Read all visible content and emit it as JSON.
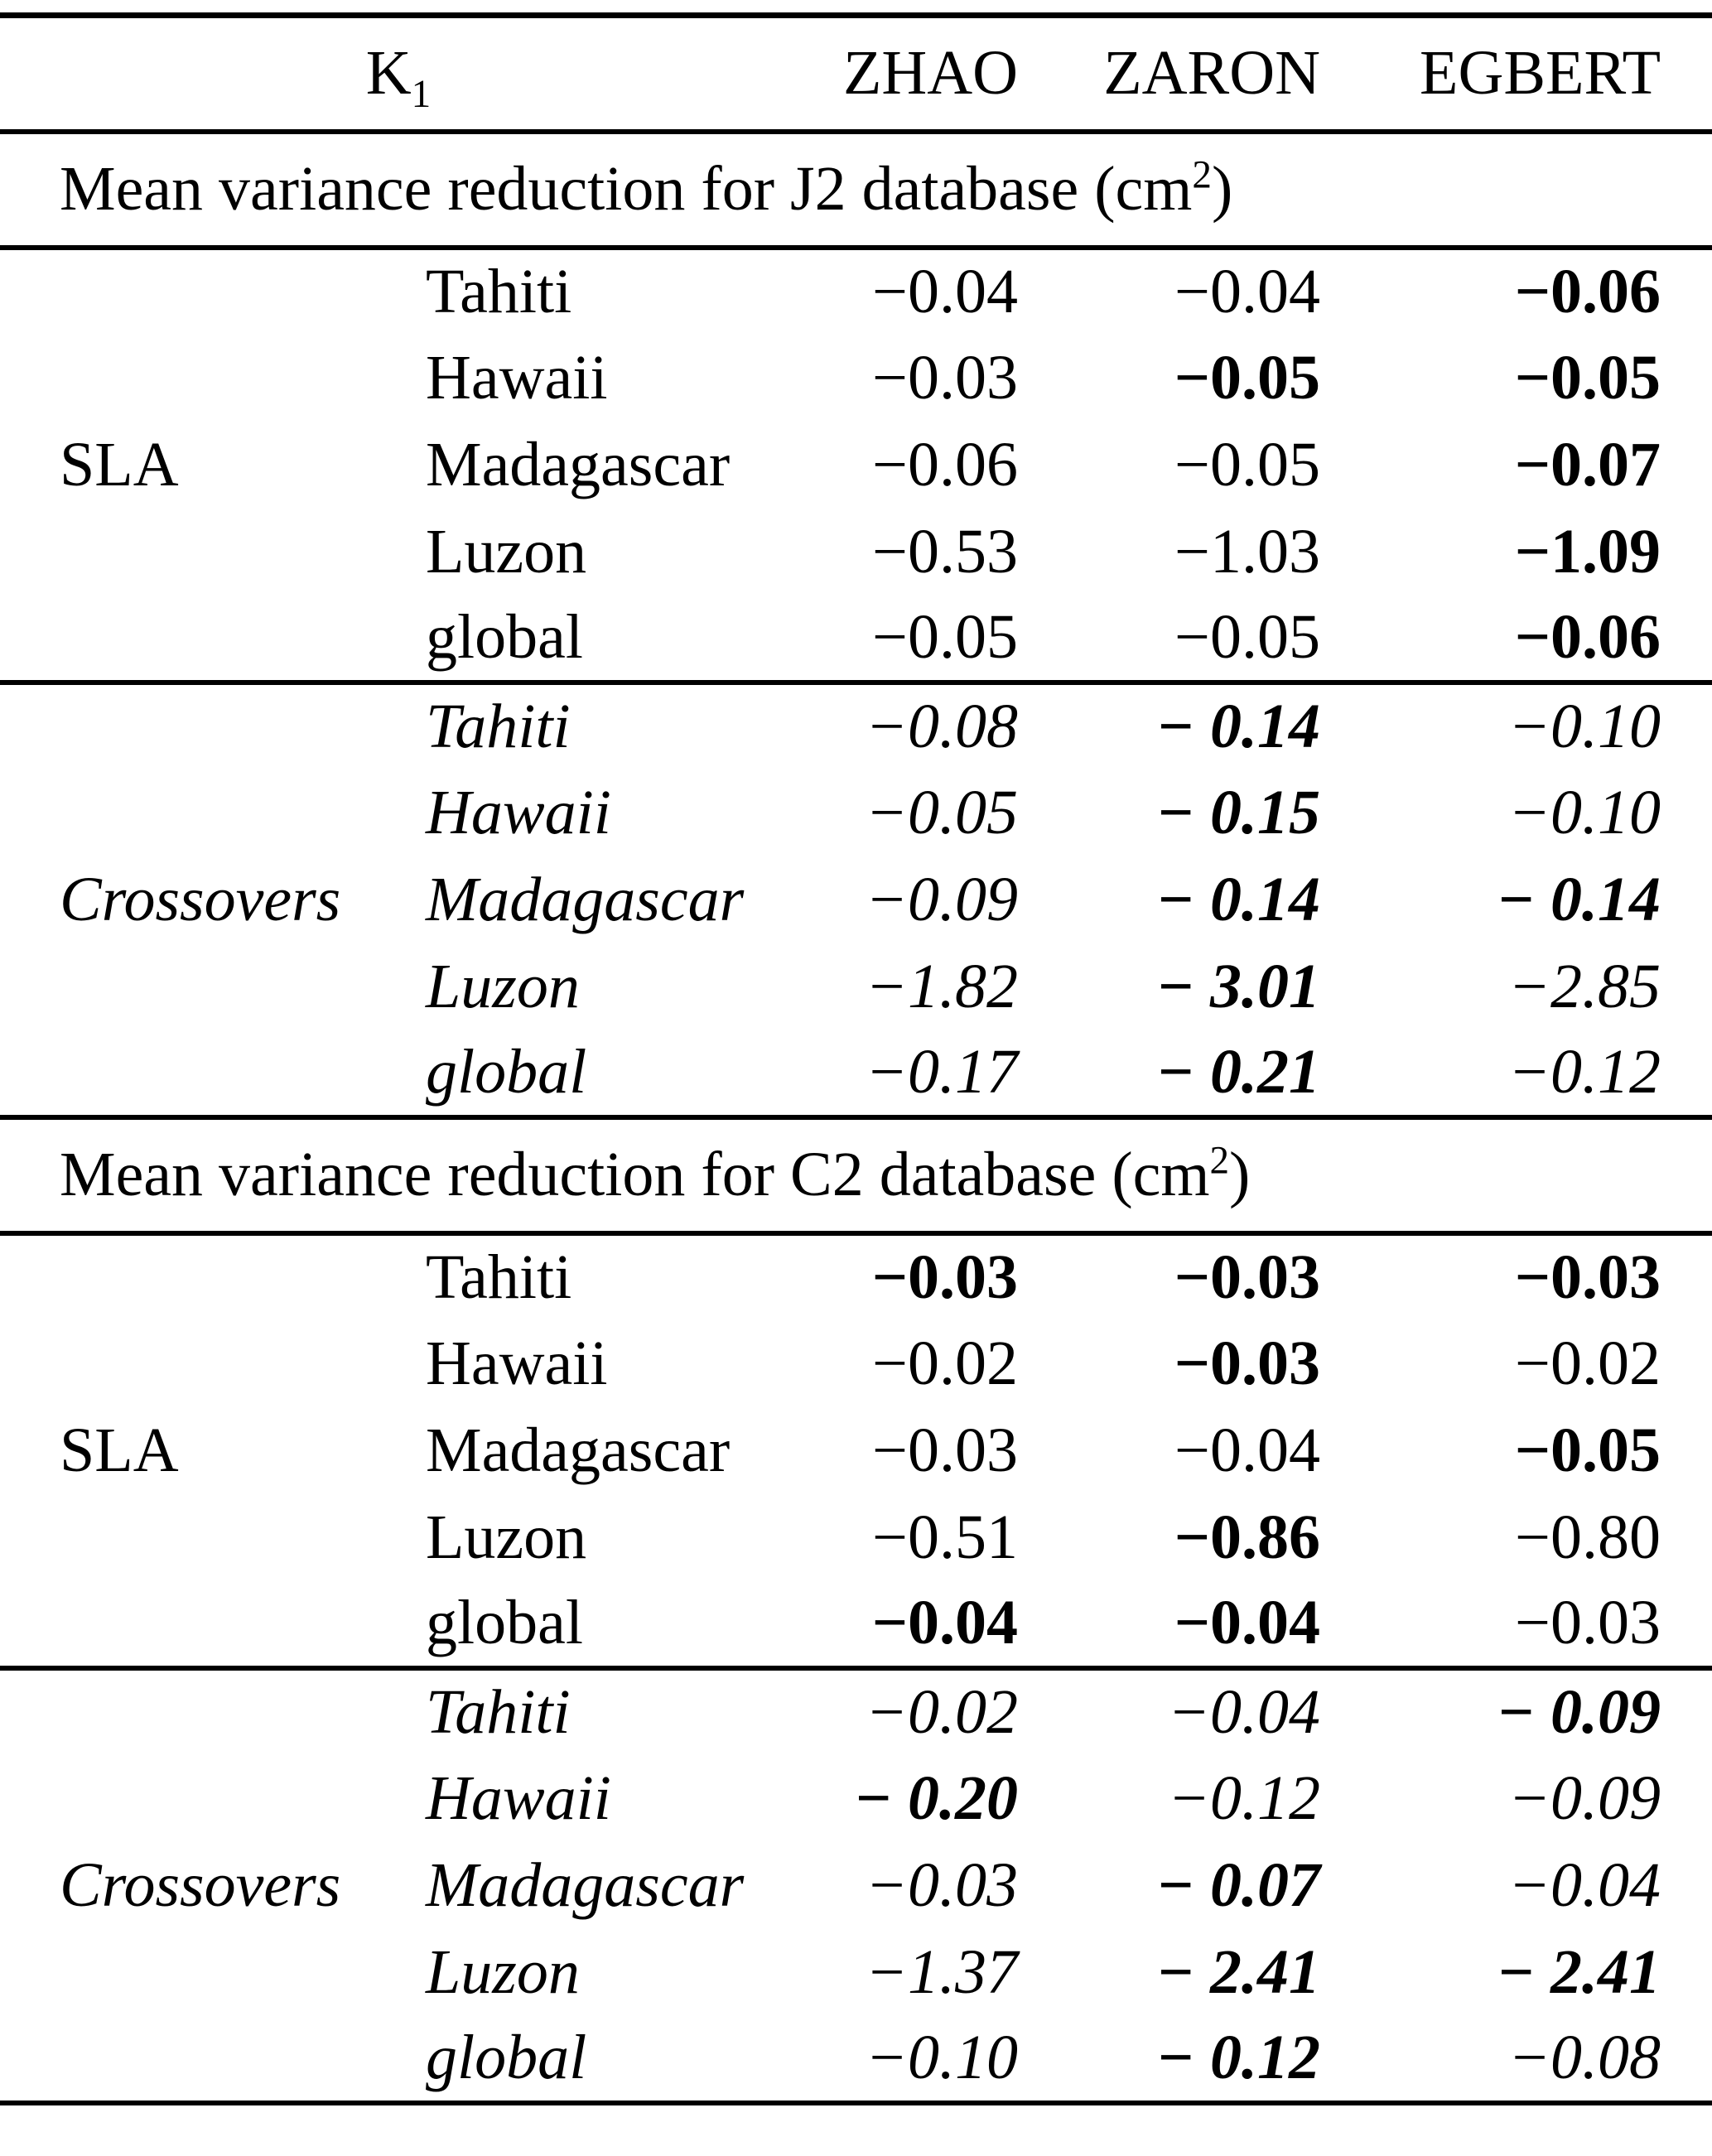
{
  "header": {
    "k_label": "K",
    "k_sub": "1",
    "models": [
      "ZHAO",
      "ZARON",
      "EGBERT"
    ]
  },
  "sections": [
    {
      "title_main": "Mean variance reduction for J2 database (cm",
      "title_sup": "2",
      "title_close": ")",
      "blocks": [
        {
          "category": "SLA",
          "rows": [
            {
              "label": "Tahiti",
              "v": [
                "−0.04",
                "−0.04",
                "−0.06"
              ],
              "bold": [
                false,
                false,
                true
              ]
            },
            {
              "label": "Hawaii",
              "v": [
                "−0.03",
                "−0.05",
                "−0.05"
              ],
              "bold": [
                false,
                true,
                true
              ]
            },
            {
              "label": "Madagascar",
              "v": [
                "−0.06",
                "−0.05",
                "−0.07"
              ],
              "bold": [
                false,
                false,
                true
              ]
            },
            {
              "label": "Luzon",
              "v": [
                "−0.53",
                "−1.03",
                "−1.09"
              ],
              "bold": [
                false,
                false,
                true
              ]
            },
            {
              "label": "global",
              "v": [
                "−0.05",
                "−0.05",
                "−0.06"
              ],
              "bold": [
                false,
                false,
                true
              ]
            }
          ]
        },
        {
          "category": "Crossovers",
          "rows": [
            {
              "label": "Tahiti",
              "v": [
                "−0.08",
                "− 0.14",
                "−0.10"
              ],
              "bold": [
                false,
                true,
                false
              ]
            },
            {
              "label": "Hawaii",
              "v": [
                "−0.05",
                "− 0.15",
                "−0.10"
              ],
              "bold": [
                false,
                true,
                false
              ]
            },
            {
              "label": "Madagascar",
              "v": [
                "−0.09",
                "− 0.14",
                "− 0.14"
              ],
              "bold": [
                false,
                true,
                true
              ]
            },
            {
              "label": "Luzon",
              "v": [
                "−1.82",
                "− 3.01",
                "−2.85"
              ],
              "bold": [
                false,
                true,
                false
              ]
            },
            {
              "label": "global",
              "v": [
                "−0.17",
                "− 0.21",
                "−0.12"
              ],
              "bold": [
                false,
                true,
                false
              ]
            }
          ]
        }
      ]
    },
    {
      "title_main": "Mean variance reduction for C2 database (cm",
      "title_sup": "2",
      "title_close": ")",
      "blocks": [
        {
          "category": "SLA",
          "rows": [
            {
              "label": "Tahiti",
              "v": [
                "−0.03",
                "−0.03",
                "−0.03"
              ],
              "bold": [
                true,
                true,
                true
              ]
            },
            {
              "label": "Hawaii",
              "v": [
                "−0.02",
                "−0.03",
                "−0.02"
              ],
              "bold": [
                false,
                true,
                false
              ]
            },
            {
              "label": "Madagascar",
              "v": [
                "−0.03",
                "−0.04",
                "−0.05"
              ],
              "bold": [
                false,
                false,
                true
              ]
            },
            {
              "label": "Luzon",
              "v": [
                "−0.51",
                "−0.86",
                "−0.80"
              ],
              "bold": [
                false,
                true,
                false
              ]
            },
            {
              "label": "global",
              "v": [
                "−0.04",
                "−0.04",
                "−0.03"
              ],
              "bold": [
                true,
                true,
                false
              ]
            }
          ]
        },
        {
          "category": "Crossovers",
          "rows": [
            {
              "label": "Tahiti",
              "v": [
                "−0.02",
                "−0.04",
                "− 0.09"
              ],
              "bold": [
                false,
                false,
                true
              ]
            },
            {
              "label": "Hawaii",
              "v": [
                "− 0.20",
                "−0.12",
                "−0.09"
              ],
              "bold": [
                true,
                false,
                false
              ]
            },
            {
              "label": "Madagascar",
              "v": [
                "−0.03",
                "− 0.07",
                "−0.04"
              ],
              "bold": [
                false,
                true,
                false
              ]
            },
            {
              "label": "Luzon",
              "v": [
                "−1.37",
                "− 2.41",
                "− 2.41"
              ],
              "bold": [
                false,
                true,
                true
              ]
            },
            {
              "label": "global",
              "v": [
                "−0.10",
                "− 0.12",
                "−0.08"
              ],
              "bold": [
                false,
                true,
                false
              ]
            }
          ]
        }
      ]
    }
  ]
}
